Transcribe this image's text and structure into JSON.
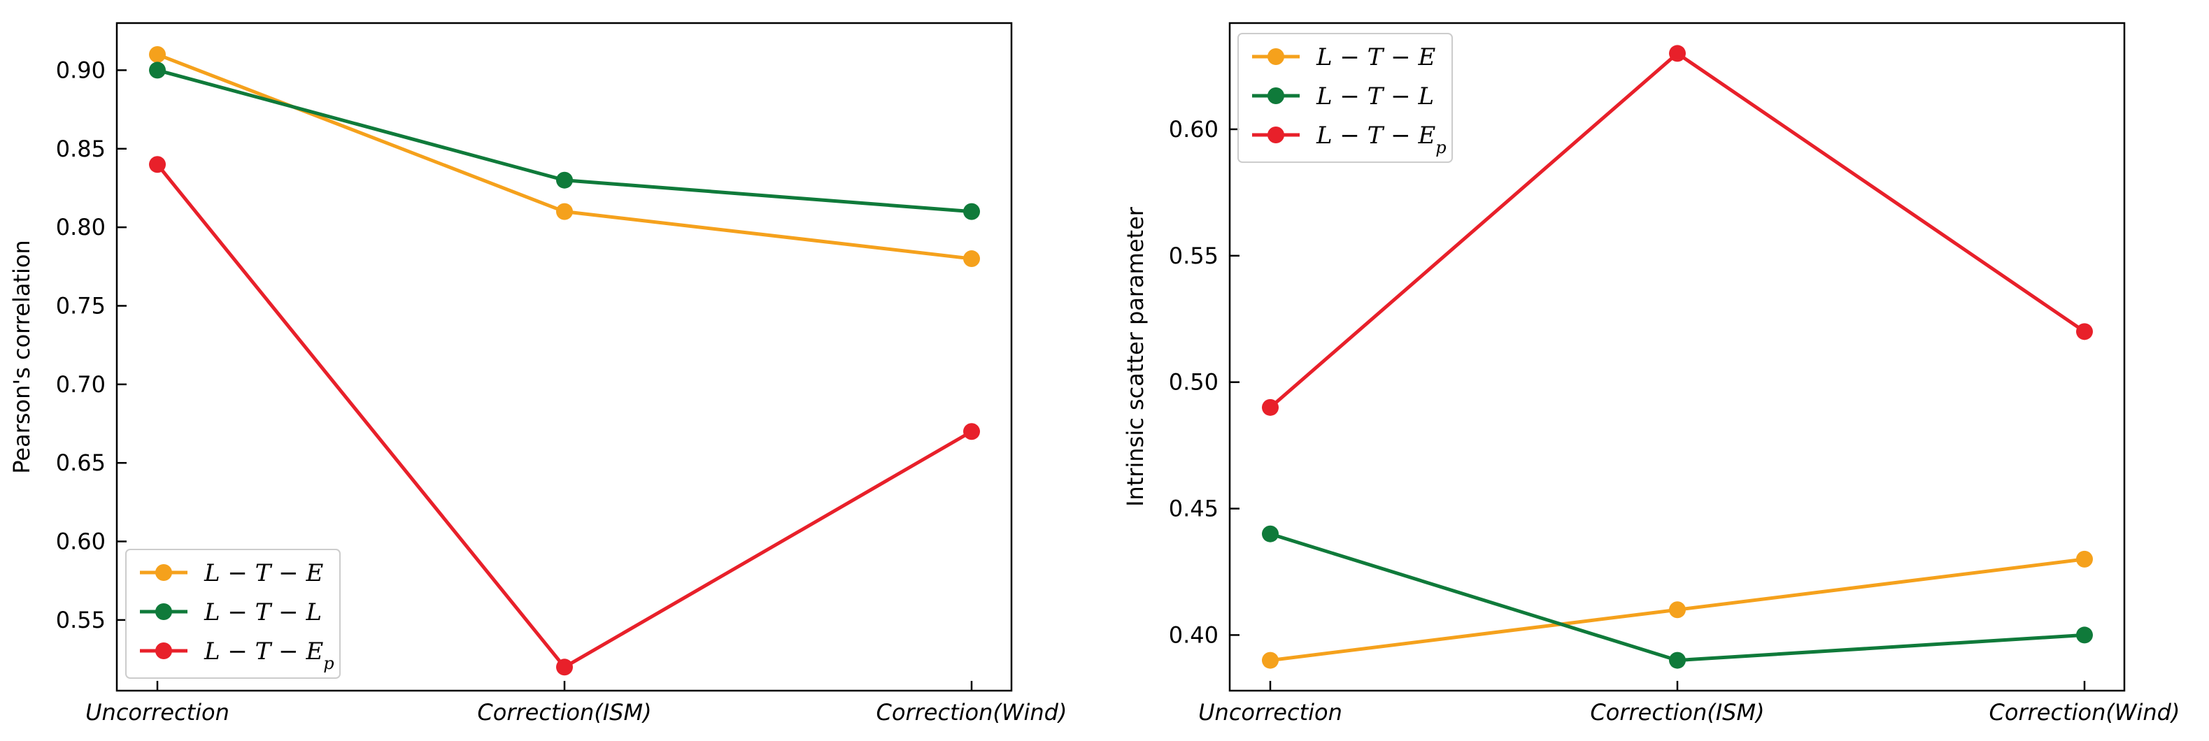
{
  "chart_data": [
    {
      "type": "line",
      "title": "",
      "xlabel": "",
      "ylabel": "Pearson's correlation",
      "categories": [
        "Uncorrection",
        "Correction(ISM)",
        "Correction(Wind)"
      ],
      "ylim": [
        0.505,
        0.93
      ],
      "yticks": [
        0.55,
        0.6,
        0.65,
        0.7,
        0.75,
        0.8,
        0.85,
        0.9
      ],
      "ytick_labels": [
        "0.55",
        "0.60",
        "0.65",
        "0.70",
        "0.75",
        "0.80",
        "0.85",
        "0.90"
      ],
      "legend_position": "lower-left",
      "series": [
        {
          "name": "L − T − E",
          "color": "#f5a11c",
          "values": [
            0.91,
            0.81,
            0.78
          ]
        },
        {
          "name": "L − T − L",
          "color": "#0f7a3a",
          "values": [
            0.9,
            0.83,
            0.81
          ]
        },
        {
          "name": "L − T − Ep",
          "color": "#e8202a",
          "values": [
            0.84,
            0.52,
            0.67
          ]
        }
      ]
    },
    {
      "type": "line",
      "title": "",
      "xlabel": "",
      "ylabel": "Intrinsic scatter parameter",
      "categories": [
        "Uncorrection",
        "Correction(ISM)",
        "Correction(Wind)"
      ],
      "ylim": [
        0.378,
        0.642
      ],
      "yticks": [
        0.4,
        0.45,
        0.5,
        0.55,
        0.6
      ],
      "ytick_labels": [
        "0.40",
        "0.45",
        "0.50",
        "0.55",
        "0.60"
      ],
      "legend_position": "upper-left",
      "series": [
        {
          "name": "L − T − E",
          "color": "#f5a11c",
          "values": [
            0.39,
            0.41,
            0.43
          ]
        },
        {
          "name": "L − T − L",
          "color": "#0f7a3a",
          "values": [
            0.44,
            0.39,
            0.4
          ]
        },
        {
          "name": "L − T − Ep",
          "color": "#e8202a",
          "values": [
            0.49,
            0.63,
            0.52
          ]
        }
      ]
    }
  ]
}
